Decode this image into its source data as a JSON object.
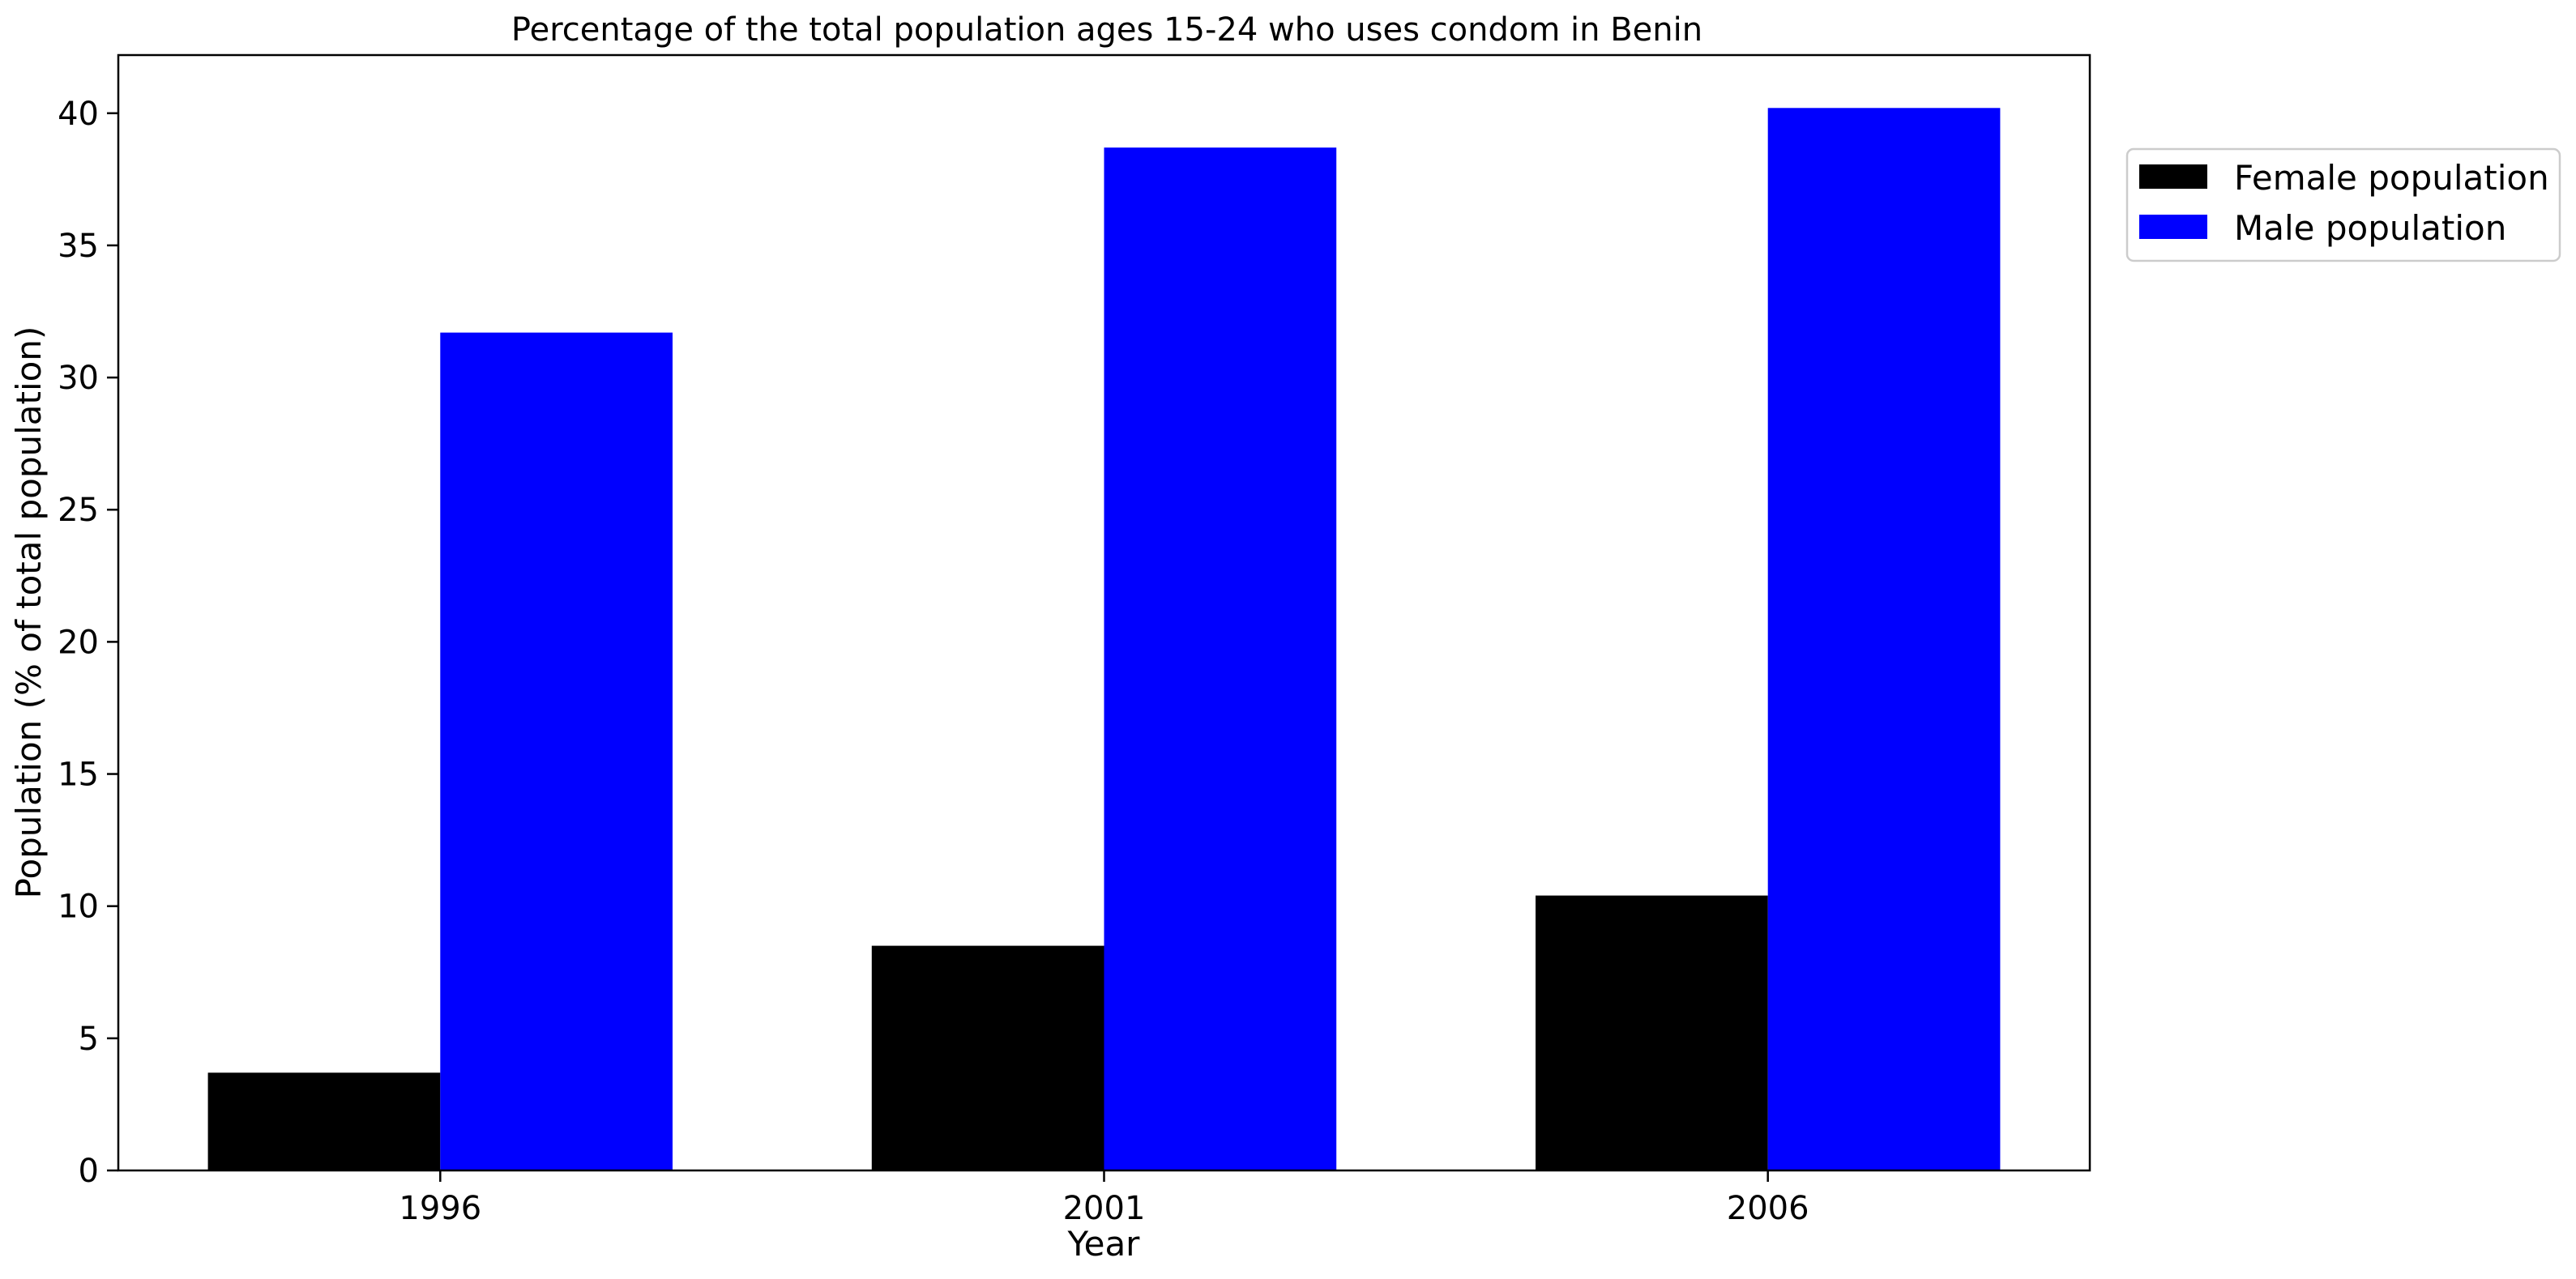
{
  "chart_data": {
    "type": "bar",
    "title": "Percentage of the total population ages 15-24 who uses condom in Benin",
    "xlabel": "Year",
    "ylabel": "Population (% of total population)",
    "categories": [
      "1996",
      "2001",
      "2006"
    ],
    "series": [
      {
        "name": "Female population",
        "color": "#000000",
        "values": [
          3.7,
          8.5,
          10.4
        ]
      },
      {
        "name": "Male population",
        "color": "#0000ff",
        "values": [
          31.7,
          38.7,
          40.2
        ]
      }
    ],
    "ylim": [
      0,
      42.2
    ],
    "yticks": [
      0,
      5,
      10,
      15,
      20,
      25,
      30,
      35,
      40
    ],
    "grid": false,
    "legend_position": "top-right outside"
  }
}
